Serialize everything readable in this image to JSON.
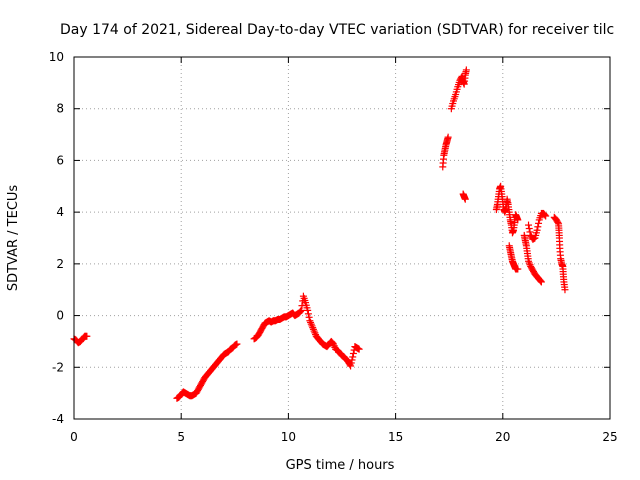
{
  "chart_data": {
    "type": "scatter",
    "title": "Day 174 of 2021, Sidereal Day-to-day VTEC variation (SDTVAR) for receiver tilc",
    "xlabel": "GPS time / hours",
    "ylabel": "SDTVAR / TECUs",
    "xlim": [
      0,
      25
    ],
    "ylim": [
      -4,
      10
    ],
    "x_ticks": [
      0,
      5,
      10,
      15,
      20,
      25
    ],
    "y_ticks": [
      -4,
      -2,
      0,
      2,
      4,
      6,
      8,
      10
    ],
    "grid": true,
    "marker": "+",
    "marker_color": "#ff0000",
    "series": [
      {
        "name": "SDTVAR",
        "segments": [
          [
            [
              0.0,
              -0.9
            ],
            [
              0.1,
              -0.95
            ],
            [
              0.2,
              -1.05
            ],
            [
              0.3,
              -1.0
            ],
            [
              0.4,
              -0.9
            ],
            [
              0.5,
              -0.8
            ],
            [
              0.6,
              -0.8
            ]
          ],
          [
            [
              4.8,
              -3.2
            ],
            [
              4.9,
              -3.15
            ],
            [
              5.0,
              -3.05
            ],
            [
              5.1,
              -2.95
            ],
            [
              5.2,
              -3.0
            ],
            [
              5.3,
              -3.05
            ],
            [
              5.4,
              -3.1
            ],
            [
              5.5,
              -3.1
            ],
            [
              5.6,
              -3.05
            ],
            [
              5.7,
              -3.0
            ],
            [
              5.8,
              -2.85
            ],
            [
              5.9,
              -2.7
            ],
            [
              6.0,
              -2.55
            ],
            [
              6.1,
              -2.4
            ],
            [
              6.2,
              -2.3
            ],
            [
              6.3,
              -2.2
            ],
            [
              6.4,
              -2.1
            ],
            [
              6.5,
              -2.0
            ],
            [
              6.6,
              -1.9
            ],
            [
              6.7,
              -1.8
            ],
            [
              6.8,
              -1.7
            ],
            [
              6.9,
              -1.6
            ],
            [
              7.0,
              -1.5
            ],
            [
              7.1,
              -1.45
            ],
            [
              7.2,
              -1.4
            ],
            [
              7.3,
              -1.3
            ],
            [
              7.4,
              -1.25
            ],
            [
              7.5,
              -1.15
            ],
            [
              7.6,
              -1.1
            ]
          ],
          [
            [
              8.4,
              -0.9
            ],
            [
              8.5,
              -0.85
            ],
            [
              8.6,
              -0.75
            ],
            [
              8.7,
              -0.6
            ],
            [
              8.8,
              -0.45
            ],
            [
              8.9,
              -0.3
            ],
            [
              9.0,
              -0.25
            ],
            [
              9.1,
              -0.2
            ],
            [
              9.2,
              -0.25
            ],
            [
              9.3,
              -0.2
            ],
            [
              9.4,
              -0.2
            ],
            [
              9.5,
              -0.15
            ],
            [
              9.6,
              -0.15
            ],
            [
              9.7,
              -0.1
            ],
            [
              9.8,
              -0.05
            ],
            [
              9.9,
              -0.05
            ],
            [
              10.0,
              0.0
            ],
            [
              10.1,
              0.05
            ],
            [
              10.2,
              0.1
            ],
            [
              10.3,
              0.0
            ],
            [
              10.4,
              0.05
            ],
            [
              10.5,
              0.1
            ],
            [
              10.6,
              0.2
            ],
            [
              10.7,
              0.75
            ],
            [
              10.8,
              0.5
            ],
            [
              10.9,
              0.2
            ],
            [
              11.0,
              -0.2
            ],
            [
              11.1,
              -0.4
            ],
            [
              11.2,
              -0.6
            ],
            [
              11.3,
              -0.8
            ],
            [
              11.4,
              -0.9
            ],
            [
              11.5,
              -1.0
            ],
            [
              11.6,
              -1.1
            ],
            [
              11.7,
              -1.15
            ],
            [
              11.8,
              -1.2
            ],
            [
              11.9,
              -1.1
            ],
            [
              12.0,
              -1.0
            ],
            [
              12.1,
              -1.1
            ],
            [
              12.2,
              -1.3
            ],
            [
              12.3,
              -1.35
            ],
            [
              12.4,
              -1.45
            ],
            [
              12.5,
              -1.55
            ],
            [
              12.6,
              -1.6
            ],
            [
              12.7,
              -1.7
            ],
            [
              12.8,
              -1.8
            ],
            [
              12.9,
              -1.95
            ],
            [
              13.0,
              -1.6
            ],
            [
              13.1,
              -1.2
            ],
            [
              13.2,
              -1.25
            ],
            [
              13.3,
              -1.3
            ]
          ],
          [
            [
              17.2,
              5.75
            ],
            [
              17.25,
              6.2
            ],
            [
              17.3,
              6.4
            ],
            [
              17.35,
              6.6
            ],
            [
              17.4,
              6.75
            ],
            [
              17.45,
              6.9
            ]
          ],
          [
            [
              17.6,
              8.0
            ],
            [
              17.7,
              8.3
            ],
            [
              17.8,
              8.55
            ],
            [
              17.9,
              8.85
            ],
            [
              18.0,
              9.1
            ],
            [
              18.1,
              9.25
            ],
            [
              18.15,
              9.05
            ],
            [
              18.2,
              8.95
            ],
            [
              18.25,
              9.3
            ],
            [
              18.3,
              9.5
            ]
          ],
          [
            [
              18.15,
              4.7
            ],
            [
              18.2,
              4.6
            ],
            [
              18.25,
              4.5
            ]
          ],
          [
            [
              19.7,
              4.1
            ],
            [
              19.75,
              4.3
            ],
            [
              19.8,
              4.6
            ],
            [
              19.85,
              4.9
            ],
            [
              19.9,
              5.0
            ],
            [
              19.95,
              4.7
            ],
            [
              20.0,
              4.4
            ],
            [
              20.05,
              4.1
            ],
            [
              20.1,
              4.0
            ],
            [
              20.15,
              4.2
            ],
            [
              20.2,
              4.5
            ],
            [
              20.25,
              4.3
            ],
            [
              20.3,
              4.0
            ],
            [
              20.35,
              3.7
            ],
            [
              20.4,
              3.5
            ],
            [
              20.45,
              3.2
            ],
            [
              20.5,
              3.3
            ],
            [
              20.55,
              3.6
            ],
            [
              20.6,
              3.9
            ],
            [
              20.65,
              3.8
            ],
            [
              20.7,
              3.7
            ]
          ],
          [
            [
              20.3,
              2.7
            ],
            [
              20.35,
              2.5
            ],
            [
              20.4,
              2.3
            ],
            [
              20.45,
              2.1
            ],
            [
              20.5,
              2.0
            ],
            [
              20.55,
              1.9
            ],
            [
              20.6,
              1.8
            ],
            [
              20.7,
              1.8
            ]
          ],
          [
            [
              21.0,
              3.1
            ],
            [
              21.05,
              2.9
            ],
            [
              21.1,
              2.7
            ],
            [
              21.15,
              2.4
            ],
            [
              21.2,
              2.1
            ],
            [
              21.3,
              1.9
            ],
            [
              21.4,
              1.75
            ],
            [
              21.5,
              1.6
            ],
            [
              21.6,
              1.5
            ],
            [
              21.7,
              1.4
            ],
            [
              21.8,
              1.3
            ]
          ],
          [
            [
              21.2,
              3.5
            ],
            [
              21.3,
              3.1
            ],
            [
              21.4,
              2.95
            ],
            [
              21.5,
              3.0
            ],
            [
              21.6,
              3.3
            ],
            [
              21.7,
              3.7
            ],
            [
              21.8,
              3.95
            ],
            [
              21.9,
              3.95
            ],
            [
              22.0,
              3.85
            ]
          ],
          [
            [
              22.4,
              3.8
            ],
            [
              22.5,
              3.7
            ],
            [
              22.6,
              3.55
            ],
            [
              22.62,
              3.3
            ],
            [
              22.64,
              3.0
            ],
            [
              22.66,
              2.6
            ],
            [
              22.7,
              2.2
            ],
            [
              22.75,
              2.0
            ],
            [
              22.8,
              1.9
            ],
            [
              22.82,
              1.6
            ],
            [
              22.85,
              1.3
            ],
            [
              22.9,
              1.0
            ]
          ]
        ]
      }
    ]
  }
}
